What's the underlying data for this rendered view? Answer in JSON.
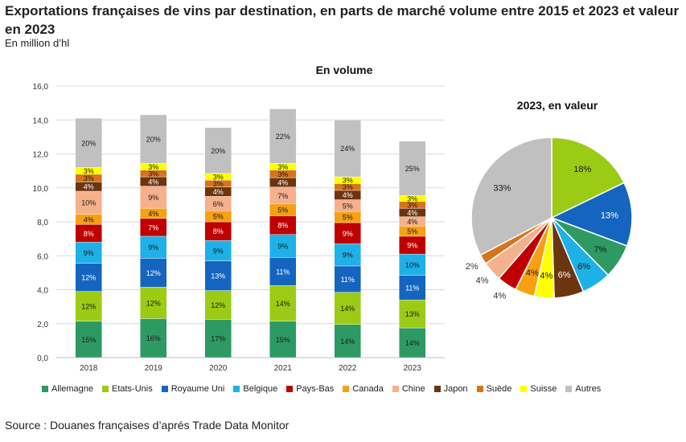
{
  "header": {
    "title": "Exportations françaises de vins par destination, en parts de marché volume entre 2015 et 2023 et valeur en 2023",
    "subtitle": "En million d’hl"
  },
  "footer": {
    "source": "Source : Douanes françaises d’aprés Trade Data Monitor"
  },
  "chart_data": [
    {
      "type": "bar",
      "stacked": true,
      "title": "En volume",
      "xlabel": "",
      "ylabel": "",
      "ylim": [
        0,
        16
      ],
      "yticks": [
        "0,0",
        "2,0",
        "4,0",
        "6,0",
        "8,0",
        "10,0",
        "12,0",
        "14,0",
        "16,0"
      ],
      "grid": true,
      "legend_position": "bottom",
      "categories": [
        "2018",
        "2019",
        "2020",
        "2021",
        "2022",
        "2023"
      ],
      "totals": [
        14.1,
        14.3,
        13.55,
        14.65,
        14.0,
        12.75
      ],
      "series": [
        {
          "name": "Allemagne",
          "color": "#2e9a63",
          "labels": [
            "15%",
            "16%",
            "17%",
            "15%",
            "14%",
            "14%"
          ],
          "values": [
            2.15,
            2.3,
            2.25,
            2.15,
            1.95,
            1.75
          ]
        },
        {
          "name": "Etats-Unis",
          "color": "#9bcb14",
          "labels": [
            "12%",
            "12%",
            "12%",
            "14%",
            "14%",
            "13%"
          ],
          "values": [
            1.75,
            1.85,
            1.7,
            2.1,
            1.9,
            1.65
          ]
        },
        {
          "name": "Royaume Uni",
          "color": "#1565c0",
          "labels": [
            "12%",
            "12%",
            "13%",
            "11%",
            "11%",
            "11%"
          ],
          "values": [
            1.65,
            1.7,
            1.75,
            1.65,
            1.55,
            1.45
          ]
        },
        {
          "name": "Belgique",
          "color": "#1eb1e7",
          "labels": [
            "9%",
            "9%",
            "9%",
            "9%",
            "9%",
            "10%"
          ],
          "values": [
            1.25,
            1.3,
            1.2,
            1.35,
            1.3,
            1.25
          ]
        },
        {
          "name": "Pays-Bas",
          "color": "#c00000",
          "labels": [
            "8%",
            "7%",
            "8%",
            "8%",
            "9%",
            "9%"
          ],
          "values": [
            1.05,
            1.05,
            1.1,
            1.1,
            1.25,
            1.05
          ]
        },
        {
          "name": "Canada",
          "color": "#f7a012",
          "labels": [
            "4%",
            "4%",
            "5%",
            "5%",
            "5%",
            "5%"
          ],
          "values": [
            0.6,
            0.6,
            0.65,
            0.7,
            0.65,
            0.6
          ]
        },
        {
          "name": "Chine",
          "color": "#f5b08c",
          "labels": [
            "10%",
            "9%",
            "6%",
            "7%",
            "5%",
            "4%"
          ],
          "values": [
            1.35,
            1.3,
            0.85,
            1.0,
            0.7,
            0.55
          ]
        },
        {
          "name": "Japon",
          "color": "#6b3510",
          "labels": [
            "4%",
            "4%",
            "4%",
            "4%",
            "4%",
            "4%"
          ],
          "values": [
            0.55,
            0.55,
            0.55,
            0.55,
            0.55,
            0.5
          ]
        },
        {
          "name": "Suède",
          "color": "#d9731b",
          "labels": [
            "3%",
            "3%",
            "3%",
            "3%",
            "3%",
            "3%"
          ],
          "values": [
            0.45,
            0.4,
            0.4,
            0.45,
            0.4,
            0.4
          ]
        },
        {
          "name": "Suisse",
          "color": "#ffff00",
          "labels": [
            "3%",
            "3%",
            "3%",
            "3%",
            "3%",
            "3%"
          ],
          "values": [
            0.4,
            0.4,
            0.4,
            0.4,
            0.4,
            0.35
          ]
        },
        {
          "name": "Autres",
          "color": "#c0c0c0",
          "labels": [
            "20%",
            "20%",
            "20%",
            "22%",
            "24%",
            "25%"
          ],
          "values": [
            2.9,
            2.85,
            2.7,
            3.2,
            3.35,
            3.2
          ]
        }
      ]
    },
    {
      "type": "pie",
      "title": "2023, en valeur",
      "slices": [
        {
          "name": "Etats-Unis",
          "value": 18,
          "label": "18%",
          "color": "#9bcb14"
        },
        {
          "name": "Royaume Uni",
          "value": 13,
          "label": "13%",
          "color": "#1565c0"
        },
        {
          "name": "Allemagne",
          "value": 7,
          "label": "7%",
          "color": "#2e9a63"
        },
        {
          "name": "Belgique",
          "value": 6,
          "label": "6%",
          "color": "#1eb1e7"
        },
        {
          "name": "Japon",
          "value": 6,
          "label": "6%",
          "color": "#6b3510"
        },
        {
          "name": "Suisse",
          "value": 4,
          "label": "4%",
          "color": "#ffff00"
        },
        {
          "name": "Canada",
          "value": 4,
          "label": "4%",
          "color": "#f7a012"
        },
        {
          "name": "Pays-Bas",
          "value": 4,
          "label": "4%",
          "color": "#c00000"
        },
        {
          "name": "Chine",
          "value": 4,
          "label": "4%",
          "color": "#f5b08c"
        },
        {
          "name": "Suède",
          "value": 2,
          "label": "2%",
          "color": "#d9731b"
        },
        {
          "name": "Autres",
          "value": 33,
          "label": "33%",
          "color": "#c0c0c0"
        }
      ]
    }
  ]
}
